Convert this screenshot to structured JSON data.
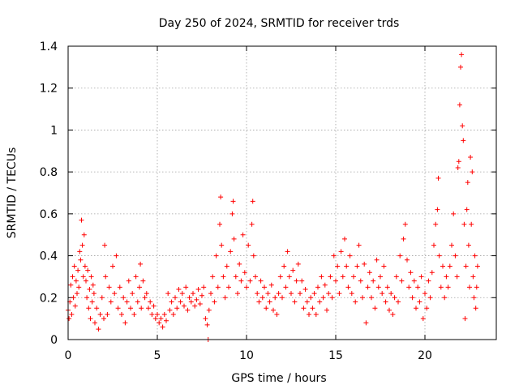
{
  "chart_data": {
    "type": "scatter",
    "title": "Day 250 of 2024, SRMTID for receiver trds",
    "xlabel": "GPS time / hours",
    "ylabel": "SRMTID / TECUs",
    "xlim": [
      0,
      24
    ],
    "ylim": [
      0,
      1.4
    ],
    "xticks": [
      0,
      5,
      10,
      15,
      20
    ],
    "xtick_labels": [
      "0",
      "5",
      "10",
      "15",
      "20"
    ],
    "yticks": [
      0,
      0.2,
      0.4,
      0.6,
      0.8,
      1.0,
      1.2,
      1.4
    ],
    "ytick_labels": [
      "0",
      "0.2",
      "0.4",
      "0.6",
      "0.8",
      "1",
      "1.2",
      "1.4"
    ],
    "grid": true,
    "marker": "+",
    "color": "#ff0000",
    "series": [
      {
        "name": "SRMTID",
        "points": [
          [
            0.0,
            0.14
          ],
          [
            0.05,
            0.1
          ],
          [
            0.1,
            0.18
          ],
          [
            0.15,
            0.26
          ],
          [
            0.2,
            0.12
          ],
          [
            0.25,
            0.3
          ],
          [
            0.3,
            0.2
          ],
          [
            0.35,
            0.35
          ],
          [
            0.4,
            0.16
          ],
          [
            0.45,
            0.28
          ],
          [
            0.5,
            0.22
          ],
          [
            0.55,
            0.33
          ],
          [
            0.6,
            0.25
          ],
          [
            0.65,
            0.42
          ],
          [
            0.7,
            0.38
          ],
          [
            0.75,
            0.57
          ],
          [
            0.8,
            0.45
          ],
          [
            0.85,
            0.3
          ],
          [
            0.9,
            0.5
          ],
          [
            0.95,
            0.35
          ],
          [
            1.0,
            0.28
          ],
          [
            1.05,
            0.2
          ],
          [
            1.1,
            0.33
          ],
          [
            1.15,
            0.15
          ],
          [
            1.2,
            0.24
          ],
          [
            1.25,
            0.1
          ],
          [
            1.3,
            0.3
          ],
          [
            1.35,
            0.18
          ],
          [
            1.4,
            0.26
          ],
          [
            1.45,
            0.22
          ],
          [
            1.5,
            0.08
          ],
          [
            1.6,
            0.15
          ],
          [
            1.7,
            0.05
          ],
          [
            1.8,
            0.12
          ],
          [
            1.9,
            0.2
          ],
          [
            2.0,
            0.1
          ],
          [
            2.05,
            0.45
          ],
          [
            2.1,
            0.3
          ],
          [
            2.2,
            0.12
          ],
          [
            2.3,
            0.25
          ],
          [
            2.4,
            0.18
          ],
          [
            2.5,
            0.35
          ],
          [
            2.6,
            0.22
          ],
          [
            2.7,
            0.4
          ],
          [
            2.8,
            0.15
          ],
          [
            2.9,
            0.25
          ],
          [
            3.0,
            0.12
          ],
          [
            3.1,
            0.2
          ],
          [
            3.2,
            0.08
          ],
          [
            3.3,
            0.18
          ],
          [
            3.4,
            0.28
          ],
          [
            3.5,
            0.15
          ],
          [
            3.6,
            0.22
          ],
          [
            3.7,
            0.12
          ],
          [
            3.8,
            0.3
          ],
          [
            3.9,
            0.18
          ],
          [
            4.0,
            0.25
          ],
          [
            4.05,
            0.36
          ],
          [
            4.1,
            0.15
          ],
          [
            4.2,
            0.28
          ],
          [
            4.3,
            0.2
          ],
          [
            4.4,
            0.22
          ],
          [
            4.5,
            0.15
          ],
          [
            4.6,
            0.18
          ],
          [
            4.7,
            0.12
          ],
          [
            4.8,
            0.16
          ],
          [
            4.9,
            0.1
          ],
          [
            5.0,
            0.12
          ],
          [
            5.1,
            0.08
          ],
          [
            5.2,
            0.1
          ],
          [
            5.3,
            0.06
          ],
          [
            5.4,
            0.12
          ],
          [
            5.5,
            0.09
          ],
          [
            5.6,
            0.22
          ],
          [
            5.7,
            0.14
          ],
          [
            5.8,
            0.18
          ],
          [
            5.9,
            0.12
          ],
          [
            6.0,
            0.2
          ],
          [
            6.1,
            0.15
          ],
          [
            6.2,
            0.24
          ],
          [
            6.3,
            0.18
          ],
          [
            6.4,
            0.22
          ],
          [
            6.5,
            0.16
          ],
          [
            6.6,
            0.25
          ],
          [
            6.7,
            0.14
          ],
          [
            6.8,
            0.2
          ],
          [
            6.9,
            0.18
          ],
          [
            7.0,
            0.22
          ],
          [
            7.1,
            0.16
          ],
          [
            7.2,
            0.19
          ],
          [
            7.3,
            0.24
          ],
          [
            7.4,
            0.17
          ],
          [
            7.5,
            0.21
          ],
          [
            7.6,
            0.25
          ],
          [
            7.7,
            0.1
          ],
          [
            7.8,
            0.07
          ],
          [
            7.85,
            0.0
          ],
          [
            7.9,
            0.14
          ],
          [
            8.0,
            0.22
          ],
          [
            8.1,
            0.3
          ],
          [
            8.2,
            0.18
          ],
          [
            8.3,
            0.4
          ],
          [
            8.4,
            0.25
          ],
          [
            8.5,
            0.55
          ],
          [
            8.55,
            0.68
          ],
          [
            8.6,
            0.45
          ],
          [
            8.7,
            0.3
          ],
          [
            8.8,
            0.2
          ],
          [
            8.9,
            0.35
          ],
          [
            9.0,
            0.25
          ],
          [
            9.1,
            0.42
          ],
          [
            9.2,
            0.6
          ],
          [
            9.25,
            0.66
          ],
          [
            9.3,
            0.48
          ],
          [
            9.4,
            0.3
          ],
          [
            9.5,
            0.22
          ],
          [
            9.6,
            0.36
          ],
          [
            9.7,
            0.28
          ],
          [
            9.8,
            0.5
          ],
          [
            9.9,
            0.32
          ],
          [
            10.0,
            0.25
          ],
          [
            10.1,
            0.45
          ],
          [
            10.2,
            0.28
          ],
          [
            10.3,
            0.55
          ],
          [
            10.35,
            0.66
          ],
          [
            10.4,
            0.4
          ],
          [
            10.5,
            0.3
          ],
          [
            10.6,
            0.22
          ],
          [
            10.7,
            0.18
          ],
          [
            10.8,
            0.28
          ],
          [
            10.9,
            0.2
          ],
          [
            11.0,
            0.25
          ],
          [
            11.1,
            0.15
          ],
          [
            11.2,
            0.22
          ],
          [
            11.3,
            0.18
          ],
          [
            11.4,
            0.26
          ],
          [
            11.5,
            0.14
          ],
          [
            11.6,
            0.2
          ],
          [
            11.7,
            0.12
          ],
          [
            11.8,
            0.22
          ],
          [
            11.9,
            0.3
          ],
          [
            12.0,
            0.2
          ],
          [
            12.1,
            0.35
          ],
          [
            12.2,
            0.25
          ],
          [
            12.3,
            0.42
          ],
          [
            12.4,
            0.3
          ],
          [
            12.5,
            0.22
          ],
          [
            12.6,
            0.33
          ],
          [
            12.7,
            0.18
          ],
          [
            12.8,
            0.28
          ],
          [
            12.9,
            0.36
          ],
          [
            13.0,
            0.22
          ],
          [
            13.1,
            0.28
          ],
          [
            13.2,
            0.15
          ],
          [
            13.3,
            0.24
          ],
          [
            13.4,
            0.18
          ],
          [
            13.5,
            0.12
          ],
          [
            13.6,
            0.2
          ],
          [
            13.7,
            0.15
          ],
          [
            13.8,
            0.22
          ],
          [
            13.9,
            0.12
          ],
          [
            14.0,
            0.25
          ],
          [
            14.1,
            0.18
          ],
          [
            14.2,
            0.3
          ],
          [
            14.3,
            0.2
          ],
          [
            14.4,
            0.26
          ],
          [
            14.5,
            0.14
          ],
          [
            14.6,
            0.22
          ],
          [
            14.7,
            0.3
          ],
          [
            14.8,
            0.2
          ],
          [
            14.9,
            0.4
          ],
          [
            15.0,
            0.28
          ],
          [
            15.1,
            0.35
          ],
          [
            15.2,
            0.22
          ],
          [
            15.3,
            0.42
          ],
          [
            15.4,
            0.3
          ],
          [
            15.5,
            0.48
          ],
          [
            15.6,
            0.35
          ],
          [
            15.7,
            0.25
          ],
          [
            15.8,
            0.4
          ],
          [
            15.9,
            0.22
          ],
          [
            16.0,
            0.3
          ],
          [
            16.1,
            0.18
          ],
          [
            16.2,
            0.35
          ],
          [
            16.3,
            0.45
          ],
          [
            16.4,
            0.28
          ],
          [
            16.5,
            0.2
          ],
          [
            16.6,
            0.36
          ],
          [
            16.7,
            0.08
          ],
          [
            16.8,
            0.25
          ],
          [
            16.9,
            0.32
          ],
          [
            17.0,
            0.2
          ],
          [
            17.1,
            0.28
          ],
          [
            17.2,
            0.15
          ],
          [
            17.3,
            0.38
          ],
          [
            17.4,
            0.25
          ],
          [
            17.5,
            0.3
          ],
          [
            17.6,
            0.22
          ],
          [
            17.7,
            0.35
          ],
          [
            17.8,
            0.18
          ],
          [
            17.9,
            0.25
          ],
          [
            18.0,
            0.14
          ],
          [
            18.1,
            0.22
          ],
          [
            18.2,
            0.12
          ],
          [
            18.3,
            0.2
          ],
          [
            18.4,
            0.3
          ],
          [
            18.5,
            0.18
          ],
          [
            18.6,
            0.4
          ],
          [
            18.7,
            0.28
          ],
          [
            18.8,
            0.48
          ],
          [
            18.9,
            0.55
          ],
          [
            19.0,
            0.38
          ],
          [
            19.1,
            0.25
          ],
          [
            19.2,
            0.32
          ],
          [
            19.3,
            0.2
          ],
          [
            19.4,
            0.28
          ],
          [
            19.5,
            0.15
          ],
          [
            19.6,
            0.25
          ],
          [
            19.7,
            0.18
          ],
          [
            19.8,
            0.3
          ],
          [
            19.9,
            0.1
          ],
          [
            20.0,
            0.22
          ],
          [
            20.1,
            0.15
          ],
          [
            20.2,
            0.28
          ],
          [
            20.3,
            0.2
          ],
          [
            20.4,
            0.32
          ],
          [
            20.5,
            0.45
          ],
          [
            20.6,
            0.55
          ],
          [
            20.7,
            0.62
          ],
          [
            20.75,
            0.77
          ],
          [
            20.8,
            0.4
          ],
          [
            20.9,
            0.25
          ],
          [
            21.0,
            0.35
          ],
          [
            21.1,
            0.2
          ],
          [
            21.2,
            0.3
          ],
          [
            21.3,
            0.25
          ],
          [
            21.4,
            0.35
          ],
          [
            21.5,
            0.45
          ],
          [
            21.6,
            0.6
          ],
          [
            21.7,
            0.4
          ],
          [
            21.8,
            0.3
          ],
          [
            21.85,
            0.82
          ],
          [
            21.9,
            0.85
          ],
          [
            21.95,
            1.12
          ],
          [
            22.0,
            1.3
          ],
          [
            22.05,
            1.36
          ],
          [
            22.1,
            1.02
          ],
          [
            22.15,
            0.95
          ],
          [
            22.2,
            0.55
          ],
          [
            22.25,
            0.1
          ],
          [
            22.3,
            0.35
          ],
          [
            22.35,
            0.62
          ],
          [
            22.4,
            0.75
          ],
          [
            22.45,
            0.45
          ],
          [
            22.5,
            0.25
          ],
          [
            22.55,
            0.87
          ],
          [
            22.6,
            0.55
          ],
          [
            22.65,
            0.8
          ],
          [
            22.7,
            0.3
          ],
          [
            22.75,
            0.2
          ],
          [
            22.8,
            0.4
          ],
          [
            22.85,
            0.15
          ],
          [
            22.9,
            0.25
          ],
          [
            22.95,
            0.35
          ]
        ]
      }
    ]
  }
}
